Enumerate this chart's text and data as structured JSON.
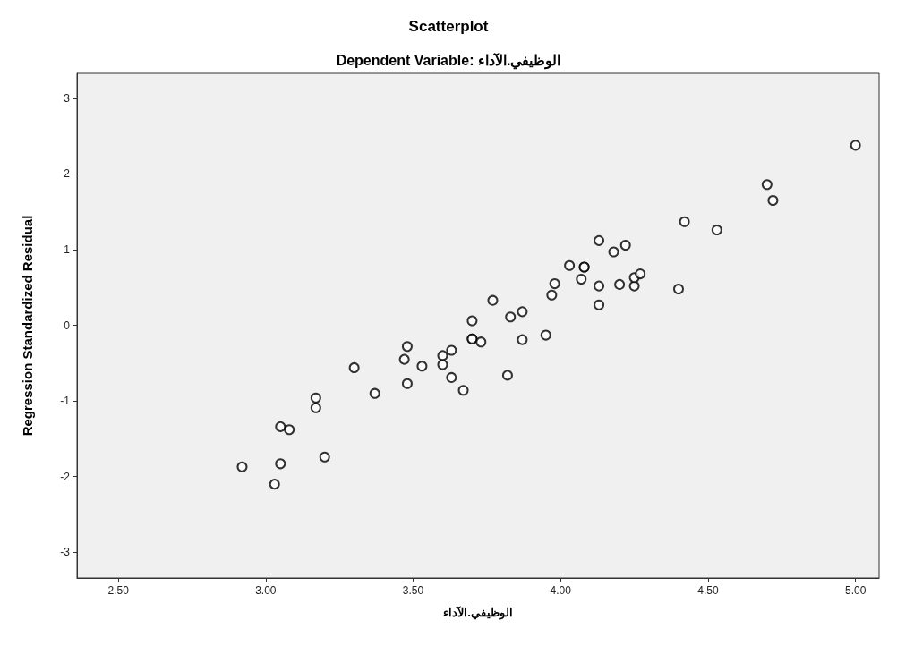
{
  "chart_data": {
    "type": "scatter",
    "title": "Scatterplot",
    "subtitle": "Dependent Variable: الوظيفي.الآداء",
    "xlabel": "الوظيفي.الآداء",
    "ylabel": "Regression Standardized Residual",
    "marker": "circle",
    "grid": false,
    "xlim": [
      2.36,
      5.08
    ],
    "ylim": [
      -3.34,
      3.33
    ],
    "xticks": [
      {
        "value": 2.5,
        "label": "2.50"
      },
      {
        "value": 3,
        "label": "3.00"
      },
      {
        "value": 3.5,
        "label": "3.50"
      },
      {
        "value": 4,
        "label": "4.00"
      },
      {
        "value": 4.5,
        "label": "4.50"
      },
      {
        "value": 5,
        "label": "5.00"
      }
    ],
    "yticks": [
      -3,
      -2,
      -1,
      0,
      1,
      2,
      3
    ],
    "series": [
      {
        "color": "#000000",
        "x": [
          5.0,
          4.7,
          4.72,
          4.42,
          4.53,
          4.4,
          4.13,
          4.18,
          4.22,
          4.03,
          4.08,
          4.08,
          4.07,
          3.98,
          3.97,
          4.13,
          4.2,
          4.25,
          4.25,
          4.27,
          4.13,
          3.77,
          3.7,
          3.83,
          3.87,
          3.7,
          3.7,
          3.73,
          3.87,
          3.95,
          3.82,
          3.48,
          3.47,
          3.53,
          3.6,
          3.63,
          3.6,
          3.63,
          3.67,
          3.48,
          3.3,
          3.37,
          3.17,
          3.17,
          3.05,
          3.08,
          3.2,
          3.05,
          2.92,
          3.03
        ],
        "values": [
          2.38,
          1.86,
          1.65,
          1.37,
          1.26,
          0.48,
          1.12,
          0.97,
          1.06,
          0.79,
          0.77,
          0.77,
          0.61,
          0.55,
          0.4,
          0.52,
          0.54,
          0.52,
          0.63,
          0.68,
          0.27,
          0.33,
          0.06,
          0.11,
          0.18,
          -0.18,
          -0.18,
          -0.22,
          -0.19,
          -0.13,
          -0.66,
          -0.28,
          -0.45,
          -0.54,
          -0.4,
          -0.33,
          -0.52,
          -0.69,
          -0.86,
          -0.77,
          -0.56,
          -0.9,
          -0.96,
          -1.09,
          -1.34,
          -1.38,
          -1.74,
          -1.83,
          -1.87,
          -2.1
        ]
      }
    ]
  }
}
